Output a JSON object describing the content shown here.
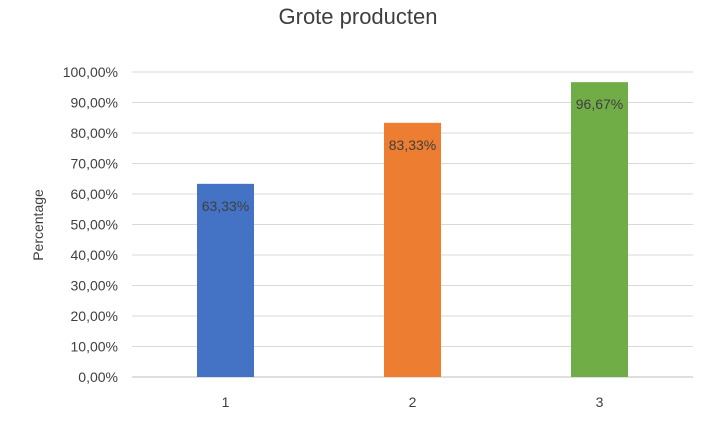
{
  "chart_data": {
    "type": "bar",
    "title": "Grote producten",
    "xlabel": "",
    "ylabel": "Percentage",
    "categories": [
      "1",
      "2",
      "3"
    ],
    "values": [
      63.33,
      83.33,
      96.67
    ],
    "data_labels": [
      "63,33%",
      "83,33%",
      "96,67%"
    ],
    "ylim": [
      0,
      100
    ],
    "y_ticks": [
      0,
      10,
      20,
      30,
      40,
      50,
      60,
      70,
      80,
      90,
      100
    ],
    "y_tick_labels": [
      "0,00%",
      "10,00%",
      "20,00%",
      "30,00%",
      "40,00%",
      "50,00%",
      "60,00%",
      "70,00%",
      "80,00%",
      "90,00%",
      "100,00%"
    ],
    "grid": true,
    "legend": "none",
    "colors": [
      "#4472c4",
      "#ed7d31",
      "#70ad47"
    ]
  }
}
